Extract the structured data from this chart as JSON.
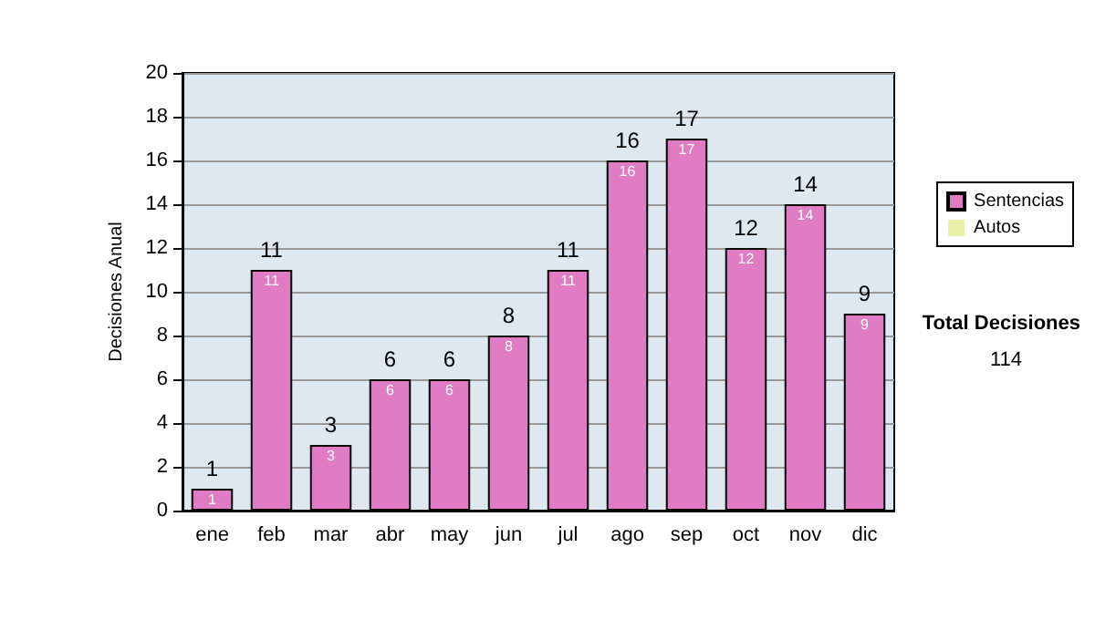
{
  "chart_data": {
    "type": "bar",
    "ylabel": "Decisiones Anual",
    "categories": [
      "ene",
      "feb",
      "mar",
      "abr",
      "may",
      "jun",
      "jul",
      "ago",
      "sep",
      "oct",
      "nov",
      "dic"
    ],
    "series": [
      {
        "name": "Sentencias",
        "color": "#e07cc4",
        "values": [
          1,
          11,
          3,
          6,
          6,
          8,
          11,
          16,
          17,
          12,
          14,
          9
        ],
        "value_labels": [
          "1",
          "11",
          "3",
          "6",
          "6",
          "8",
          "11",
          "16",
          "17",
          "12",
          "14",
          "9"
        ]
      },
      {
        "name": "Autos",
        "color": "#e8f0a8",
        "values": [
          0,
          0,
          0,
          0,
          0,
          0,
          0,
          0,
          0,
          0,
          0,
          0
        ]
      }
    ],
    "stacked": true,
    "totals": [
      "1",
      "11",
      "3",
      "6",
      "6",
      "8",
      "11",
      "16",
      "17",
      "12",
      "14",
      "9"
    ],
    "ylim": [
      0,
      20
    ],
    "yticks": [
      0,
      2,
      4,
      6,
      8,
      10,
      12,
      14,
      16,
      18,
      20
    ],
    "grid": "y",
    "legend": "right",
    "annotations": [
      "Total Decisiones",
      "114"
    ]
  }
}
